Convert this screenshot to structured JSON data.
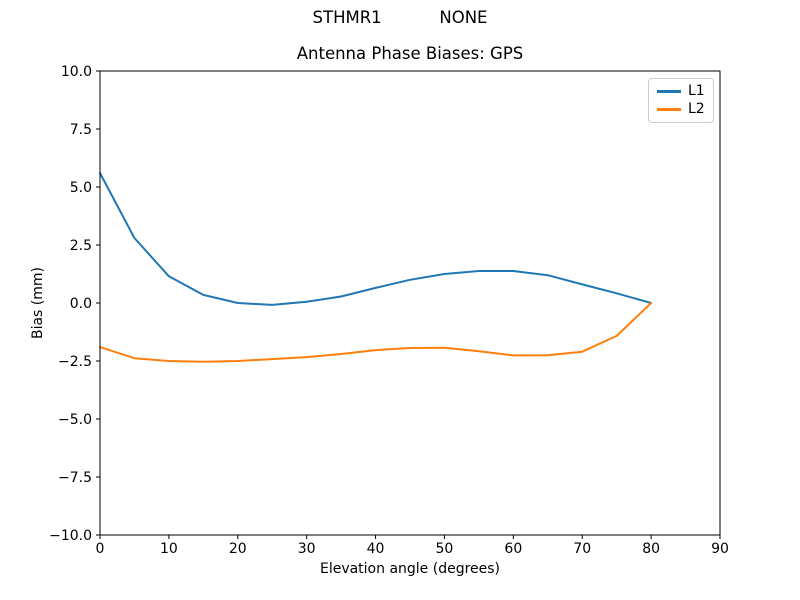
{
  "header": {
    "suptitle": "STHMR1           NONE"
  },
  "chart_data": {
    "type": "line",
    "title": "Antenna Phase Biases: GPS",
    "xlabel": "Elevation angle (degrees)",
    "ylabel": "Bias (mm)",
    "xlim": [
      0,
      90
    ],
    "ylim": [
      -10,
      10
    ],
    "grid": false,
    "legend_position": "upper right",
    "x_ticks": {
      "values": [
        0,
        10,
        20,
        30,
        40,
        50,
        60,
        70,
        80,
        90
      ],
      "labels": [
        "0",
        "10",
        "20",
        "30",
        "40",
        "50",
        "60",
        "70",
        "80",
        "90"
      ]
    },
    "y_ticks": {
      "values": [
        -10,
        -7.5,
        -5,
        -2.5,
        0,
        2.5,
        5,
        7.5,
        10
      ],
      "labels": [
        "−10.0",
        "−7.5",
        "−5.0",
        "−2.5",
        "0.0",
        "2.5",
        "5.0",
        "7.5",
        "10.0"
      ]
    },
    "x": [
      0,
      5,
      10,
      15,
      20,
      25,
      30,
      35,
      40,
      45,
      50,
      55,
      60,
      65,
      70,
      75,
      80
    ],
    "series": [
      {
        "name": "L1",
        "color": "#1f77b4",
        "values": [
          5.6,
          2.8,
          1.15,
          0.35,
          0.0,
          -0.08,
          0.05,
          0.28,
          0.65,
          1.0,
          1.25,
          1.38,
          1.38,
          1.2,
          0.8,
          0.42,
          0.0
        ]
      },
      {
        "name": "L2",
        "color": "#ff7f0e",
        "values": [
          -1.9,
          -2.38,
          -2.5,
          -2.53,
          -2.5,
          -2.42,
          -2.33,
          -2.2,
          -2.03,
          -1.94,
          -1.93,
          -2.08,
          -2.26,
          -2.25,
          -2.1,
          -1.42,
          0.0
        ]
      }
    ]
  }
}
